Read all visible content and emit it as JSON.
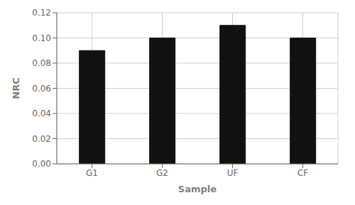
{
  "chart_data": {
    "type": "bar",
    "categories": [
      "G1",
      "G2",
      "UF",
      "CF"
    ],
    "values": [
      0.09,
      0.1,
      0.11,
      0.1
    ],
    "color": "#111111",
    "xlabel": "Sample",
    "ylabel": "NRC",
    "ylim": [
      0.0,
      0.12
    ],
    "yticks": [
      {
        "value": 0.0,
        "label": "0.00"
      },
      0.02,
      0.04,
      0.06,
      0.08,
      {
        "value": 0.1,
        "label": "0.10"
      },
      0.12
    ],
    "grid": true
  }
}
